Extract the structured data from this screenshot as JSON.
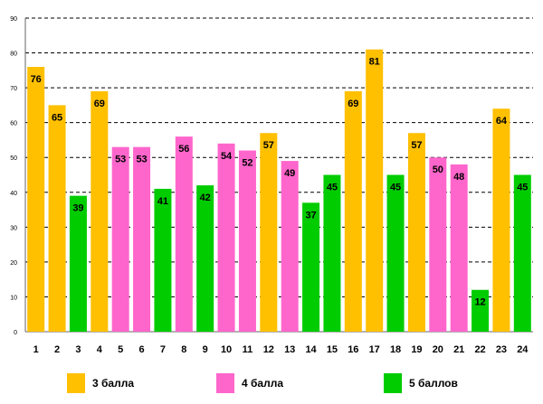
{
  "chart_data": {
    "type": "bar",
    "title": "",
    "xlabel": "",
    "ylabel": "",
    "ylim": [
      0,
      90
    ],
    "yticks": [
      "0",
      "10",
      "20",
      "30",
      "40",
      "50",
      "60",
      "70",
      "80",
      "90"
    ],
    "categories": [
      "1",
      "2",
      "3",
      "4",
      "5",
      "6",
      "7",
      "8",
      "9",
      "10",
      "11",
      "12",
      "13",
      "14",
      "15",
      "16",
      "17",
      "18",
      "19",
      "20",
      "21",
      "22",
      "23",
      "24"
    ],
    "values": [
      76,
      65,
      39,
      69,
      53,
      53,
      41,
      56,
      42,
      54,
      52,
      57,
      49,
      37,
      45,
      69,
      81,
      45,
      57,
      50,
      48,
      12,
      64,
      45
    ],
    "groups": [
      "g3",
      "g3",
      "g5",
      "g3",
      "g4",
      "g4",
      "g5",
      "g4",
      "g5",
      "g4",
      "g4",
      "g3",
      "g4",
      "g5",
      "g5",
      "g3",
      "g3",
      "g5",
      "g3",
      "g4",
      "g4",
      "g5",
      "g3",
      "g5"
    ],
    "grid": true,
    "legend_position": "bottom",
    "legend": [
      {
        "key": "g3",
        "label": "3 балла",
        "color": "#FFC000"
      },
      {
        "key": "g4",
        "label": "4 балла",
        "color": "#FF66CC"
      },
      {
        "key": "g5",
        "label": "5 баллов",
        "color": "#00CC00"
      }
    ]
  }
}
